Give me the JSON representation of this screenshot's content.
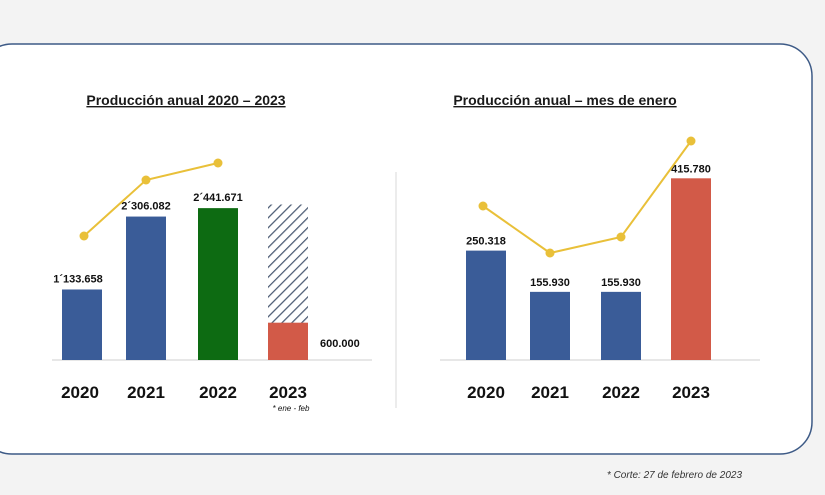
{
  "colors": {
    "blue": "#3a5c98",
    "green": "#0d6b12",
    "red": "#d25a48",
    "line": "#e9c039",
    "frame": "#3d5a86"
  },
  "footnote": "* Corte: 27 de febrero de 2023",
  "chart_data": [
    {
      "type": "bar",
      "title": "Producción anual 2020 – 2023",
      "categories": [
        "2020",
        "2021",
        "2022",
        "2023"
      ],
      "values": [
        1133658,
        2306082,
        2441671,
        600000
      ],
      "value_labels": [
        "1´133.658",
        "2´306.082",
        "2´441.671",
        "600.000"
      ],
      "bar_colors": [
        "#3a5c98",
        "#3a5c98",
        "#0d6b12",
        "#d25a48"
      ],
      "projected_2023_total": 2500000,
      "trend_line_values": [
        1133658,
        2306082,
        2441671
      ],
      "category_note": "* ene - feb",
      "ylim": [
        0,
        2600000
      ]
    },
    {
      "type": "bar",
      "title": "Producción anual – mes de enero",
      "categories": [
        "2020",
        "2021",
        "2022",
        "2023"
      ],
      "values": [
        250318,
        155930,
        155930,
        415780
      ],
      "value_labels": [
        "250.318",
        "155.930",
        "155.930",
        "415.780"
      ],
      "bar_colors": [
        "#3a5c98",
        "#3a5c98",
        "#3a5c98",
        "#d25a48"
      ],
      "trend_line_values": [
        250318,
        155930,
        155930,
        415780
      ],
      "ylim": [
        0,
        430000
      ]
    }
  ]
}
